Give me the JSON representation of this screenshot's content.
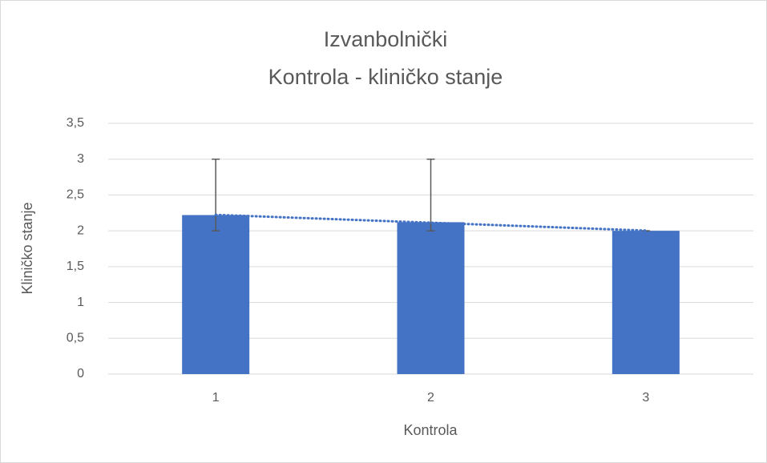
{
  "chart_data": {
    "type": "bar",
    "title": [
      "Izvanbolnički",
      "Kontrola - kliničko stanje"
    ],
    "x_label": "Kontrola",
    "y_label": "Kliničko stanje",
    "categories": [
      "1",
      "2",
      "3"
    ],
    "values": [
      2.22,
      2.12,
      2.0
    ],
    "error_low": [
      2,
      2,
      2
    ],
    "error_high": [
      3,
      3,
      2
    ],
    "color": "#4472c4",
    "error_color": "#595959",
    "trendline": "linear",
    "ylim": [
      0,
      3.5
    ],
    "yticks": [
      0,
      {
        "value": 0.5,
        "label": "0,5"
      },
      1,
      {
        "value": 1.5,
        "label": "1,5"
      },
      2,
      {
        "value": 2.5,
        "label": "2,5"
      },
      3,
      {
        "value": 3.5,
        "label": "3,5"
      }
    ],
    "grid": true
  }
}
